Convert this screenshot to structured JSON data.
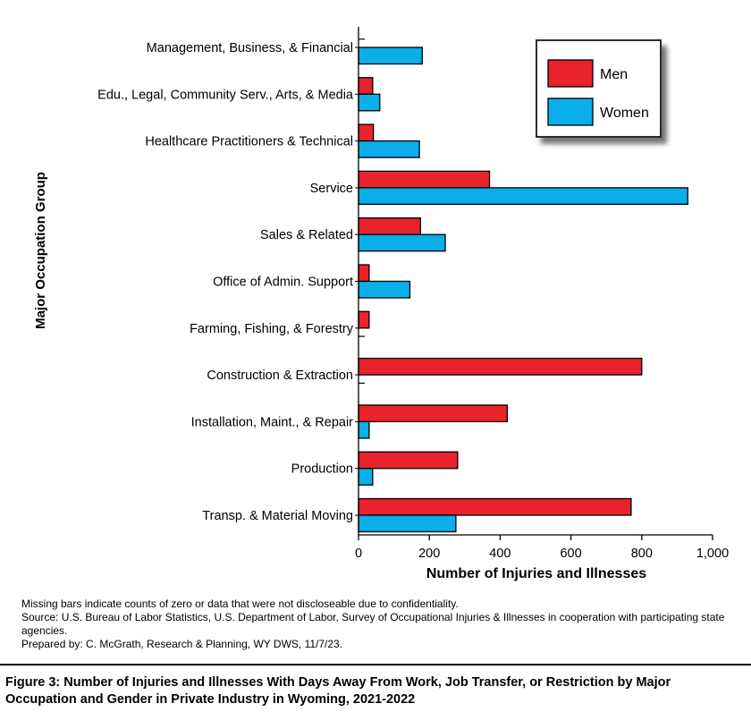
{
  "chart_data": {
    "type": "bar",
    "orientation": "horizontal",
    "categories": [
      "Management, Business, & Financial",
      "Edu., Legal, Community Serv., Arts, & Media",
      "Healthcare Practitioners & Technical",
      "Service",
      "Sales & Related",
      "Office of Admin. Support",
      "Farming, Fishing, & Forestry",
      "Construction & Extraction",
      "Installation, Maint., & Repair",
      "Production",
      "Transp. & Material Moving"
    ],
    "series": [
      {
        "name": "Men",
        "color": "#e8232b",
        "values": [
          null,
          40,
          42,
          370,
          175,
          30,
          30,
          800,
          420,
          280,
          770
        ]
      },
      {
        "name": "Women",
        "color": "#0aaee8",
        "values": [
          180,
          60,
          172,
          930,
          245,
          145,
          null,
          null,
          30,
          40,
          275
        ]
      }
    ],
    "xlabel": "Number of Injuries and Illnesses",
    "ylabel": "Major Occupation Group",
    "xlim": [
      0,
      1000
    ],
    "xticks": [
      "0",
      "200",
      "400",
      "600",
      "800",
      "1,000"
    ],
    "legend": "top-right",
    "grid": false
  },
  "notes": {
    "missing": "Missing bars indicate counts of zero or data that were not discloseable due to confidentiality.",
    "source": "Source: U.S. Bureau of Labor Statistics, U.S. Department of Labor, Survey of Occupational Injuries & Illnesses in cooperation with participating state agencies.",
    "prepared": "Prepared by: C. McGrath, Research & Planning, WY DWS, 11/7/23."
  },
  "caption": "Figure 3:  Number of Injuries and Illnesses With Days Away From Work, Job Transfer, or Restriction by Major Occupation and Gender in Private Industry in Wyoming, 2021-2022"
}
